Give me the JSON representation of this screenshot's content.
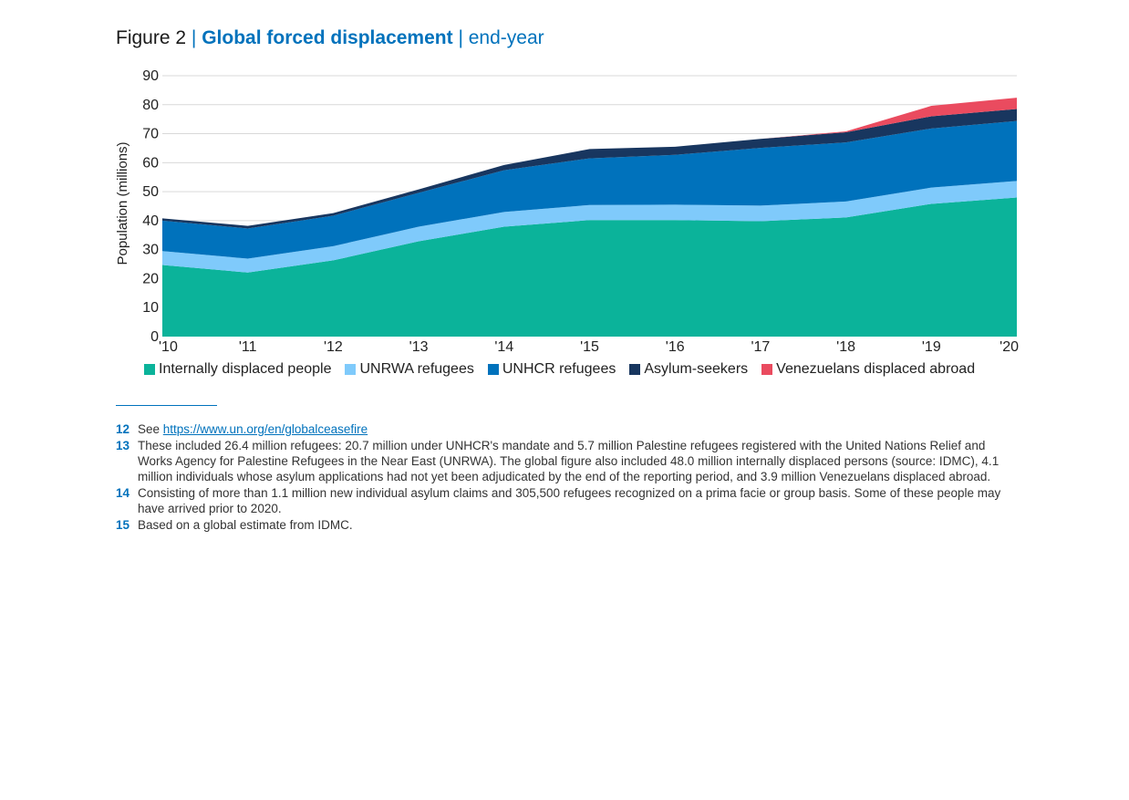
{
  "figure": {
    "number": "Figure 2",
    "separator": "|",
    "title": "Global forced displacement",
    "subtitle": "| end-year"
  },
  "colors": {
    "idp": "#0bb39a",
    "unrwa": "#7fcafb",
    "unhcr": "#0072bc",
    "asylum": "#18365f",
    "venezuelans": "#ea4b5f",
    "grid": "#d9d9d9",
    "accent": "#0072bc"
  },
  "chart_data": {
    "type": "area",
    "stacked": true,
    "ylabel": "Population (millions)",
    "ylim": [
      0,
      90
    ],
    "yticks": [
      0,
      10,
      20,
      30,
      40,
      50,
      60,
      70,
      80,
      90
    ],
    "grid": true,
    "legend_position": "bottom",
    "categories": [
      "'10",
      "'11",
      "'12",
      "'13",
      "'14",
      "'15",
      "'16",
      "'17",
      "'18",
      "'19",
      "'20"
    ],
    "series": [
      {
        "name": "Internally displaced people",
        "color_key": "idp",
        "values": [
          24.7,
          22.1,
          26.3,
          32.9,
          37.9,
          40.2,
          40.2,
          39.8,
          41.1,
          45.8,
          48.0
        ]
      },
      {
        "name": "UNRWA refugees",
        "color_key": "unrwa",
        "values": [
          4.8,
          4.8,
          4.9,
          5.0,
          5.1,
          5.2,
          5.3,
          5.4,
          5.5,
          5.6,
          5.7
        ]
      },
      {
        "name": "UNHCR refugees",
        "color_key": "unhcr",
        "values": [
          10.5,
          10.4,
          10.5,
          11.7,
          14.4,
          16.1,
          17.2,
          19.9,
          20.4,
          20.4,
          20.7
        ]
      },
      {
        "name": "Asylum-seekers",
        "color_key": "asylum",
        "values": [
          0.8,
          0.9,
          0.9,
          1.2,
          1.8,
          3.2,
          2.8,
          3.1,
          3.5,
          4.2,
          4.1
        ]
      },
      {
        "name": "Venezuelans displaced abroad",
        "color_key": "venezuelans",
        "values": [
          0,
          0,
          0,
          0,
          0,
          0,
          0,
          0,
          0.3,
          3.6,
          3.9
        ]
      }
    ]
  },
  "footnotes": [
    {
      "num": "12",
      "prefix": "See ",
      "link": "https://www.un.org/en/globalceasefire",
      "text": ""
    },
    {
      "num": "13",
      "prefix": "",
      "link": "",
      "text": "These included 26.4 million refugees: 20.7 million under UNHCR's mandate and 5.7 million Palestine refugees registered with the United Nations Relief and Works Agency for Palestine Refugees in the Near East (UNRWA). The global figure also included 48.0 million internally displaced persons (source: IDMC), 4.1 million individuals whose asylum applications had not yet been adjudicated by the end of the reporting period, and 3.9 million Venezuelans displaced abroad."
    },
    {
      "num": "14",
      "prefix": "",
      "link": "",
      "text": "Consisting of more than 1.1 million new individual asylum claims and 305,500 refugees recognized on a prima facie or group basis. Some of these people may have arrived prior to 2020."
    },
    {
      "num": "15",
      "prefix": "",
      "link": "",
      "text": "Based on a global estimate from IDMC."
    }
  ]
}
